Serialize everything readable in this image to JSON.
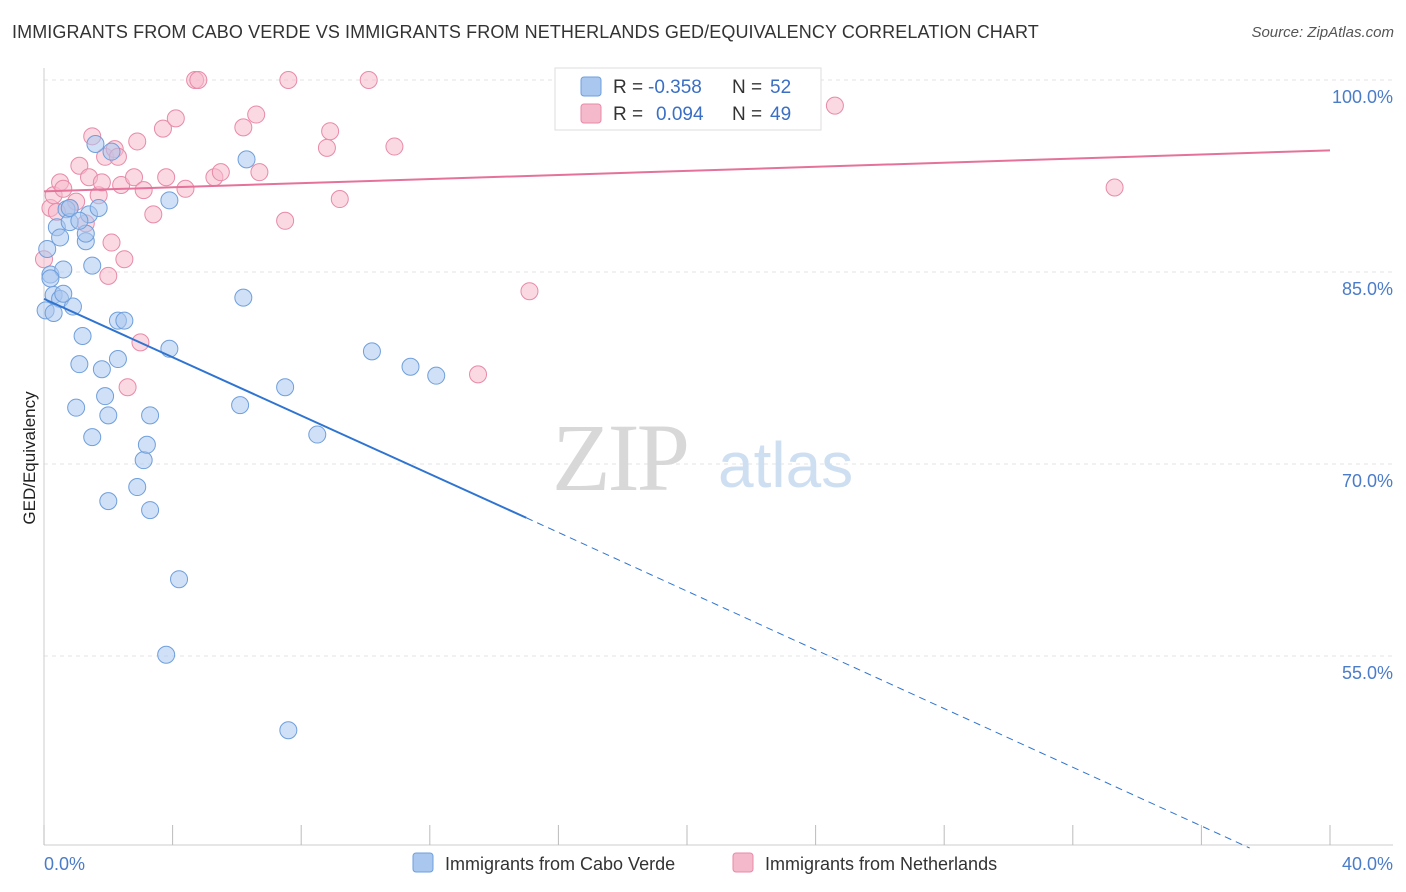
{
  "header": {
    "title": "IMMIGRANTS FROM CABO VERDE VS IMMIGRANTS FROM NETHERLANDS GED/EQUIVALENCY CORRELATION CHART",
    "source": "Source: ZipAtlas.com"
  },
  "watermark": {
    "part1": "ZIP",
    "part2": "atlas"
  },
  "legend": {
    "r_label": "R =",
    "n_label": "N =",
    "rows": [
      {
        "r": "-0.358",
        "n": "52"
      },
      {
        "r": "0.094",
        "n": "49"
      }
    ]
  },
  "colors": {
    "blue_fill": "#a9c7ef",
    "blue_stroke": "#6f9fdc",
    "blue_line": "#2f74d0",
    "pink_fill": "#f5b9cc",
    "pink_stroke": "#e88aa8",
    "pink_line": "#e4729a"
  },
  "chart_data": {
    "type": "scatter",
    "title": "IMMIGRANTS FROM CABO VERDE VS IMMIGRANTS FROM NETHERLANDS GED/EQUIVALENCY CORRELATION CHART",
    "xlabel": "",
    "ylabel": "GED/Equivalency",
    "xlim": [
      0,
      40
    ],
    "ylim": [
      40,
      102.5
    ],
    "x_tick_labels": [
      "0.0%",
      "40.0%"
    ],
    "y_ticks": [
      55,
      70,
      85,
      100
    ],
    "y_tick_labels": [
      "55.0%",
      "70.0%",
      "85.0%",
      "100.0%"
    ],
    "legend_position": "top-center",
    "series": [
      {
        "name": "Immigrants from Cabo Verde",
        "color": "#a9c7ef",
        "points": [
          [
            0.1,
            86.8
          ],
          [
            0.2,
            84.8
          ],
          [
            0.3,
            83.2
          ],
          [
            0.4,
            88.5
          ],
          [
            0.5,
            87.7
          ],
          [
            0.5,
            82.9
          ],
          [
            0.6,
            85.2
          ],
          [
            0.7,
            89.9
          ],
          [
            0.8,
            88.9
          ],
          [
            0.9,
            82.3
          ],
          [
            1.0,
            74.4
          ],
          [
            1.1,
            77.8
          ],
          [
            1.2,
            80.0
          ],
          [
            1.3,
            87.4
          ],
          [
            1.4,
            89.5
          ],
          [
            1.5,
            85.5
          ],
          [
            1.5,
            72.1
          ],
          [
            1.6,
            95.0
          ],
          [
            1.7,
            90.0
          ],
          [
            1.8,
            77.4
          ],
          [
            1.9,
            75.3
          ],
          [
            2.0,
            73.8
          ],
          [
            2.0,
            67.1
          ],
          [
            2.1,
            94.4
          ],
          [
            2.3,
            78.2
          ],
          [
            2.3,
            81.2
          ],
          [
            2.5,
            81.2
          ],
          [
            2.9,
            68.2
          ],
          [
            3.1,
            70.3
          ],
          [
            3.2,
            71.5
          ],
          [
            3.3,
            73.8
          ],
          [
            3.3,
            66.4
          ],
          [
            3.8,
            55.1
          ],
          [
            3.9,
            79.0
          ],
          [
            3.9,
            90.6
          ],
          [
            4.2,
            61.0
          ],
          [
            6.1,
            74.6
          ],
          [
            6.2,
            83.0
          ],
          [
            6.3,
            93.8
          ],
          [
            7.5,
            76.0
          ],
          [
            7.6,
            49.2
          ],
          [
            8.5,
            72.3
          ],
          [
            10.2,
            78.8
          ],
          [
            11.4,
            77.6
          ],
          [
            12.2,
            76.9
          ],
          [
            0.05,
            82.0
          ],
          [
            0.3,
            81.8
          ],
          [
            0.6,
            83.3
          ],
          [
            1.3,
            88.0
          ],
          [
            0.2,
            84.5
          ],
          [
            0.8,
            90.0
          ],
          [
            1.1,
            89.0
          ]
        ],
        "trend": {
          "x_start": 0,
          "y_start": 82.9,
          "x_solid_end": 15.0,
          "y_solid_end": 65.8,
          "x_end": 37.5,
          "y_end": 40.0
        }
      },
      {
        "name": "Immigrants from Netherlands",
        "color": "#f5b9cc",
        "points": [
          [
            0.0,
            86.0
          ],
          [
            0.2,
            90.0
          ],
          [
            0.3,
            91.0
          ],
          [
            0.5,
            92.0
          ],
          [
            0.6,
            91.5
          ],
          [
            0.8,
            90.0
          ],
          [
            1.0,
            90.5
          ],
          [
            1.1,
            93.3
          ],
          [
            1.3,
            88.8
          ],
          [
            1.4,
            92.4
          ],
          [
            1.5,
            95.6
          ],
          [
            1.7,
            91.0
          ],
          [
            1.8,
            92.0
          ],
          [
            1.9,
            94.0
          ],
          [
            2.0,
            84.7
          ],
          [
            2.1,
            87.3
          ],
          [
            2.2,
            94.6
          ],
          [
            2.3,
            94.0
          ],
          [
            2.4,
            91.8
          ],
          [
            2.5,
            86.0
          ],
          [
            2.6,
            76.0
          ],
          [
            2.8,
            92.4
          ],
          [
            2.9,
            95.2
          ],
          [
            3.0,
            79.5
          ],
          [
            3.1,
            91.4
          ],
          [
            3.4,
            89.5
          ],
          [
            3.7,
            96.2
          ],
          [
            3.8,
            92.4
          ],
          [
            4.1,
            97.0
          ],
          [
            4.4,
            91.5
          ],
          [
            4.7,
            100.0
          ],
          [
            4.8,
            100.0
          ],
          [
            5.3,
            92.4
          ],
          [
            5.5,
            92.8
          ],
          [
            6.2,
            96.3
          ],
          [
            6.6,
            97.3
          ],
          [
            6.7,
            92.8
          ],
          [
            7.5,
            89.0
          ],
          [
            7.6,
            100.0
          ],
          [
            8.8,
            94.7
          ],
          [
            8.9,
            96.0
          ],
          [
            9.2,
            90.7
          ],
          [
            10.1,
            100.0
          ],
          [
            10.9,
            94.8
          ],
          [
            13.5,
            77.0
          ],
          [
            15.1,
            83.5
          ],
          [
            24.6,
            98.0
          ],
          [
            33.3,
            91.6
          ],
          [
            0.4,
            89.7
          ]
        ],
        "trend": {
          "x_start": 0,
          "y_start": 91.3,
          "x_end": 40,
          "y_end": 94.5
        }
      }
    ]
  },
  "bottom_legend": [
    {
      "label": "Immigrants from Cabo Verde"
    },
    {
      "label": "Immigrants from Netherlands"
    }
  ]
}
